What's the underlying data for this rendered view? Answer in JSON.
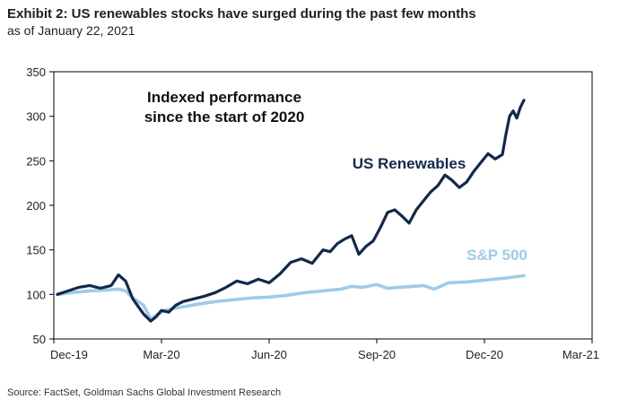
{
  "header": {
    "title": "Exhibit 2: US renewables stocks have surged during the past few months",
    "subtitle": "as of January 22, 2021"
  },
  "footer": {
    "source": "Source: FactSet, Goldman Sachs Global Investment Research"
  },
  "chart_data": {
    "type": "line",
    "title": "Exhibit 2: US renewables stocks have surged during the past few months",
    "subtitle": "as of January 22, 2021",
    "xlabel": "",
    "ylabel": "",
    "ylim": [
      50,
      350
    ],
    "yticks": [
      50,
      100,
      150,
      200,
      250,
      300,
      350
    ],
    "xlim_months": [
      0,
      15
    ],
    "xticks": [
      {
        "label": "Dec-19",
        "month": 0
      },
      {
        "label": "Mar-20",
        "month": 3
      },
      {
        "label": "Jun-20",
        "month": 6
      },
      {
        "label": "Sep-20",
        "month": 9
      },
      {
        "label": "Dec-20",
        "month": 12
      },
      {
        "label": "Mar-21",
        "month": 15
      }
    ],
    "annotation_lines": [
      "Indexed performance",
      "since the start of 2020"
    ],
    "grid": false,
    "legend": "inline labels",
    "series": [
      {
        "name": "US Renewables",
        "color": "#13294b",
        "x": [
          0.1,
          0.4,
          0.7,
          1.0,
          1.3,
          1.6,
          1.8,
          2.0,
          2.2,
          2.5,
          2.7,
          2.85,
          3.0,
          3.2,
          3.4,
          3.6,
          3.9,
          4.2,
          4.5,
          4.8,
          5.1,
          5.4,
          5.7,
          6.0,
          6.3,
          6.6,
          6.9,
          7.2,
          7.5,
          7.7,
          7.9,
          8.1,
          8.3,
          8.5,
          8.7,
          8.9,
          9.1,
          9.3,
          9.5,
          9.7,
          9.9,
          10.1,
          10.3,
          10.5,
          10.7,
          10.9,
          11.1,
          11.3,
          11.5,
          11.7,
          11.9,
          12.1,
          12.3,
          12.5,
          12.6,
          12.7,
          12.8,
          12.9,
          13.0,
          13.1
        ],
        "y": [
          100,
          104,
          108,
          110,
          107,
          110,
          122,
          115,
          95,
          78,
          70,
          75,
          82,
          80,
          88,
          92,
          95,
          98,
          102,
          108,
          115,
          112,
          117,
          113,
          123,
          136,
          140,
          135,
          150,
          148,
          157,
          162,
          166,
          145,
          154,
          160,
          175,
          192,
          195,
          188,
          180,
          195,
          205,
          215,
          222,
          234,
          228,
          220,
          226,
          238,
          248,
          258,
          252,
          257,
          280,
          300,
          306,
          298,
          310,
          318
        ]
      },
      {
        "name": "S&P 500",
        "color": "#9ecbe8",
        "x": [
          0.1,
          0.5,
          1.0,
          1.5,
          1.8,
          2.0,
          2.2,
          2.5,
          2.7,
          2.9,
          3.1,
          3.3,
          3.6,
          4.0,
          4.5,
          5.0,
          5.5,
          6.0,
          6.5,
          7.0,
          7.5,
          8.0,
          8.3,
          8.6,
          9.0,
          9.3,
          9.6,
          10.0,
          10.3,
          10.6,
          11.0,
          11.5,
          12.0,
          12.5,
          13.1
        ],
        "y": [
          100,
          102,
          104,
          105,
          106,
          104,
          96,
          88,
          72,
          78,
          82,
          84,
          86,
          89,
          92,
          94,
          96,
          97,
          99,
          102,
          104,
          106,
          109,
          108,
          111,
          107,
          108,
          109,
          110,
          106,
          113,
          114,
          116,
          118,
          121
        ]
      }
    ]
  }
}
